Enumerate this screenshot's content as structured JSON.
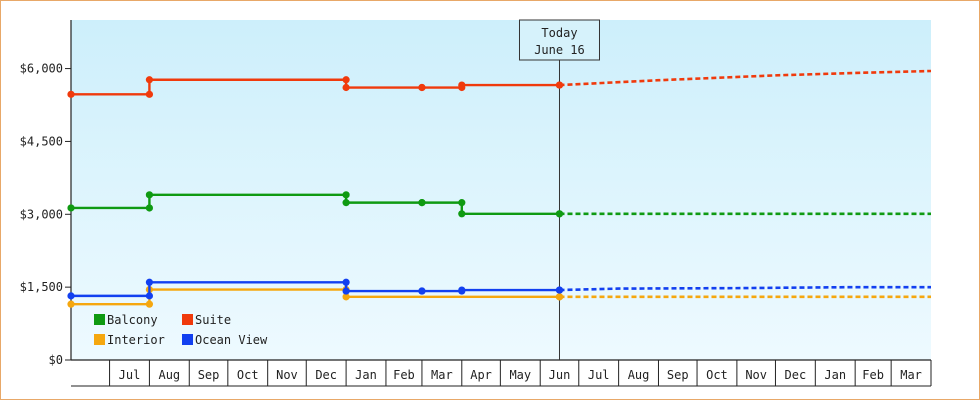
{
  "chart_data": {
    "type": "line",
    "title": "",
    "xlabel": "",
    "ylabel": "",
    "y_tick_labels": [
      "$0",
      "$1,500",
      "$3,000",
      "$4,500",
      "$6,000"
    ],
    "y_ticks": [
      0,
      1500,
      3000,
      4500,
      6000
    ],
    "ylim": [
      0,
      7000
    ],
    "x_tick_labels": [
      "Jul",
      "Aug",
      "Sep",
      "Oct",
      "Nov",
      "Dec",
      "Jan",
      "Feb",
      "Mar",
      "Apr",
      "May",
      "Jun",
      "Jul",
      "Aug",
      "Sep",
      "Oct",
      "Nov",
      "Dec",
      "Jan",
      "Feb",
      "Mar"
    ],
    "xlim": [
      "2024-06-01",
      "2026-04-01"
    ],
    "today": {
      "label_line1": "Today",
      "label_line2": "June 16",
      "date": "2025-06-16"
    },
    "line_style": "step",
    "grid": false,
    "legend_position": "bottom-left",
    "background_colors": [
      "#cdeffb",
      "#eefaff"
    ],
    "series": [
      {
        "name": "Balcony",
        "color": "#0f9a12",
        "points": [
          [
            "2024-06-01",
            3130
          ],
          [
            "2024-08-01",
            3400
          ],
          [
            "2025-01-01",
            3240
          ],
          [
            "2025-03-01",
            3240
          ],
          [
            "2025-04-01",
            3010
          ],
          [
            "2025-06-16",
            3010
          ]
        ],
        "projection": [
          [
            "2025-06-16",
            3010
          ],
          [
            "2026-04-01",
            3010
          ]
        ]
      },
      {
        "name": "Suite",
        "color": "#f03a0c",
        "points": [
          [
            "2024-06-01",
            5470
          ],
          [
            "2024-08-01",
            5770
          ],
          [
            "2025-01-01",
            5610
          ],
          [
            "2025-03-01",
            5610
          ],
          [
            "2025-04-01",
            5660
          ],
          [
            "2025-06-16",
            5660
          ]
        ],
        "projection": [
          [
            "2025-06-16",
            5660
          ],
          [
            "2025-09-01",
            5760
          ],
          [
            "2025-12-01",
            5860
          ],
          [
            "2026-02-01",
            5910
          ],
          [
            "2026-04-01",
            5950
          ]
        ]
      },
      {
        "name": "Interior",
        "color": "#f5a70f",
        "points": [
          [
            "2024-06-01",
            1150
          ],
          [
            "2024-08-01",
            1450
          ],
          [
            "2025-01-01",
            1300
          ],
          [
            "2025-06-16",
            1300
          ]
        ],
        "projection": [
          [
            "2025-06-16",
            1300
          ],
          [
            "2026-04-01",
            1300
          ]
        ]
      },
      {
        "name": "Ocean View",
        "color": "#1240f0",
        "points": [
          [
            "2024-06-01",
            1320
          ],
          [
            "2024-08-01",
            1600
          ],
          [
            "2025-01-01",
            1420
          ],
          [
            "2025-03-01",
            1420
          ],
          [
            "2025-04-01",
            1440
          ],
          [
            "2025-06-16",
            1440
          ]
        ],
        "projection": [
          [
            "2025-06-16",
            1440
          ],
          [
            "2025-08-01",
            1470
          ],
          [
            "2025-11-01",
            1480
          ],
          [
            "2026-02-01",
            1500
          ],
          [
            "2026-04-01",
            1500
          ]
        ]
      }
    ]
  }
}
